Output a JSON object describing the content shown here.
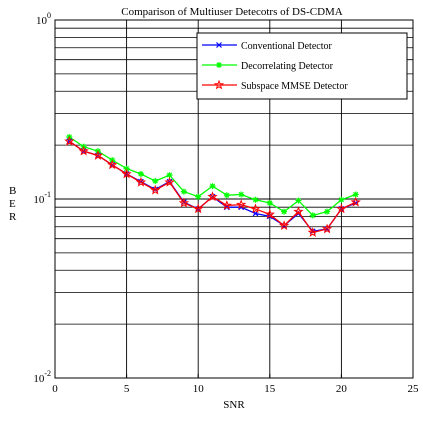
{
  "chart_data": {
    "type": "line",
    "title": "Comparison of Multiuser Detecotrs of DS-CDMA",
    "xlabel": "SNR",
    "ylabel": "BER",
    "xlim": [
      0,
      25
    ],
    "ylim": [
      0.01,
      1
    ],
    "yscale": "log",
    "grid": true,
    "legend_position": "top-right",
    "x_ticks": [
      0,
      5,
      10,
      15,
      20,
      25
    ],
    "x_tick_labels": [
      "0",
      "5",
      "10",
      "15",
      "20",
      "25"
    ],
    "y_ticks": [
      {
        "value": 1,
        "base": "10",
        "exp": "0"
      },
      {
        "value": 0.1,
        "base": "10",
        "exp": "-1"
      },
      {
        "value": 0.01,
        "base": "10",
        "exp": "-2"
      }
    ],
    "x": [
      1,
      2,
      3,
      4,
      5,
      6,
      7,
      8,
      9,
      10,
      11,
      12,
      13,
      14,
      15,
      16,
      17,
      18,
      19,
      20,
      21
    ],
    "series": [
      {
        "name": "Conventional  Detector",
        "color": "#0000ff",
        "marker": "x",
        "values": [
          0.21,
          0.185,
          0.175,
          0.155,
          0.138,
          0.125,
          0.113,
          0.125,
          0.096,
          0.088,
          0.103,
          0.09,
          0.09,
          0.083,
          0.08,
          0.071,
          0.083,
          0.066,
          0.068,
          0.088,
          0.095
        ]
      },
      {
        "name": "Decorrelating  Detector",
        "color": "#00ff00",
        "marker": "star",
        "values": [
          0.222,
          0.196,
          0.185,
          0.165,
          0.148,
          0.138,
          0.126,
          0.136,
          0.11,
          0.103,
          0.118,
          0.105,
          0.106,
          0.099,
          0.095,
          0.085,
          0.098,
          0.081,
          0.085,
          0.099,
          0.106
        ]
      },
      {
        "name": "Subspace MMSE Detector",
        "color": "#ff0000",
        "marker": "pentagram",
        "values": [
          0.21,
          0.185,
          0.175,
          0.155,
          0.138,
          0.124,
          0.112,
          0.124,
          0.095,
          0.088,
          0.103,
          0.092,
          0.093,
          0.088,
          0.082,
          0.071,
          0.085,
          0.065,
          0.068,
          0.088,
          0.096
        ]
      }
    ]
  }
}
